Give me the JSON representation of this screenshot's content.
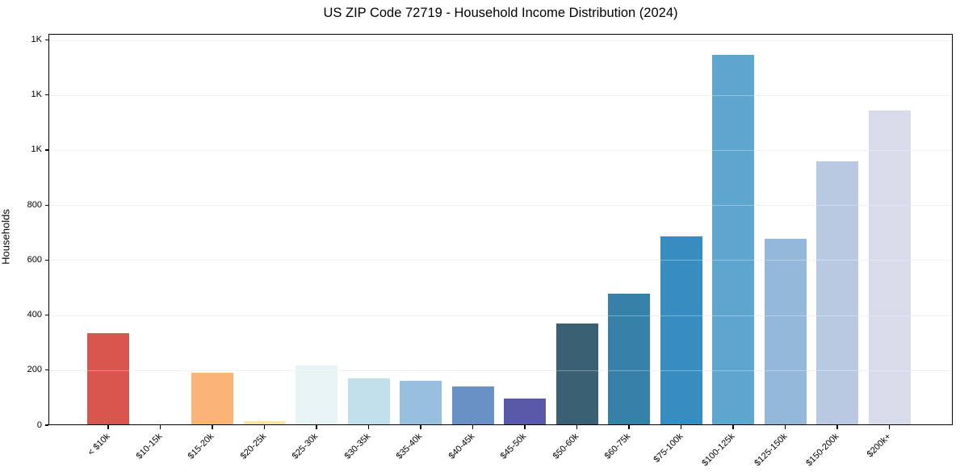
{
  "chart": {
    "title": "US ZIP Code 72719 - Household Income Distribution (2024)",
    "ylabel": "Households"
  },
  "chart_data": {
    "type": "bar",
    "title": "US ZIP Code 72719 - Household Income Distribution (2024)",
    "xlabel": "",
    "ylabel": "Households",
    "categories": [
      "< $10k",
      "$10-15k",
      "$15-20k",
      "$20-25k",
      "$25-30k",
      "$30-35k",
      "$35-40k",
      "$40-45k",
      "$45-50k",
      "$50-60k",
      "$60-75k",
      "$75-100k",
      "$100-125k",
      "$125-150k",
      "$150-200k",
      "$200k+"
    ],
    "values": [
      335,
      0,
      190,
      14,
      217,
      170,
      162,
      140,
      97,
      370,
      478,
      687,
      1345,
      678,
      960,
      1143
    ],
    "bar_colors": [
      "#d9564e",
      "#ee9a60",
      "#fab476",
      "#f5e3a9",
      "#e8f3f3",
      "#c1e0ec",
      "#96c0dd",
      "#6a91c5",
      "#5a58a8",
      "#3a6173",
      "#3780a8",
      "#378dc0",
      "#5fa6cf",
      "#94b8d9",
      "#b9c9e2",
      "#d8dbe9"
    ],
    "yticks": [
      {
        "value": 0,
        "label": "0"
      },
      {
        "value": 200,
        "label": "200"
      },
      {
        "value": 400,
        "label": "400"
      },
      {
        "value": 600,
        "label": "600"
      },
      {
        "value": 800,
        "label": "800"
      },
      {
        "value": 1000,
        "label": "1K"
      },
      {
        "value": 1200,
        "label": "1K"
      },
      {
        "value": 1400,
        "label": "1K"
      }
    ],
    "ylim": [
      0,
      1422
    ],
    "grid": "horizontal",
    "gridline_color": "#e7e7e7",
    "legend": "none",
    "plot_bg": "#ffffff",
    "text_color": "#000000"
  }
}
